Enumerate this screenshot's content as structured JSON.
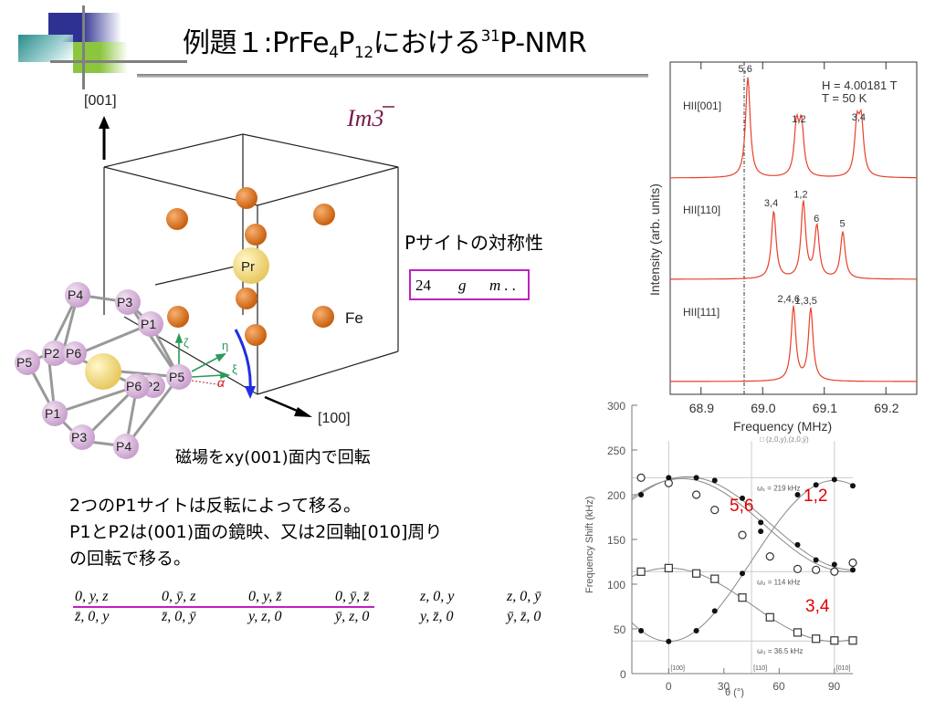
{
  "slide": {
    "title_prefix": "例題１:PrFe",
    "title_sub1": "4",
    "title_p": "P",
    "title_sub2": "12",
    "title_mid": "における",
    "title_sup": "31",
    "title_suffix": "P-NMR"
  },
  "crystal": {
    "axis_001": "[001]",
    "axis_100": "[100]",
    "space_group": "Im3̄",
    "atom_pr": "Pr",
    "atom_fe": "Fe",
    "p_labels": [
      "P4",
      "P3",
      "P1",
      "P2",
      "P6",
      "P5",
      "P5",
      "P6",
      "P2",
      "P1",
      "P3",
      "P4"
    ],
    "local_axes": [
      "ζ",
      "η",
      "ξ",
      "α"
    ],
    "rotation_caption": "磁場をxy(001)面内で回転"
  },
  "symmetry": {
    "heading": "Pサイトの対称性",
    "multiplicity": "24",
    "wyckoff": "g",
    "site_symmetry": "m . ."
  },
  "explanation": {
    "line1": "2つのP1サイトは反転によって移る。",
    "line2": "P1とP2は(001)面の鏡映、又は2回軸[010]周り",
    "line3": "の回転で移る。"
  },
  "coordinates": {
    "row1": [
      "0, y, z",
      "0, ȳ, z",
      "0, y, z̄",
      "0, ȳ, z̄",
      "z, 0, y",
      "z, 0, ȳ"
    ],
    "row2": [
      "z̄, 0, y",
      "z̄, 0, ȳ",
      "y, z, 0",
      "ȳ, z, 0",
      "y, z̄, 0",
      "ȳ, z̄, 0"
    ]
  },
  "chart_data": [
    {
      "type": "line",
      "title": "",
      "xlabel": "Frequency (MHz)",
      "ylabel": "Intensity (arb. units)",
      "xlim": [
        68.85,
        69.25
      ],
      "xticks": [
        "68.9",
        "69.0",
        "69.1",
        "69.2"
      ],
      "annotations": [
        "H = 4.00181 T",
        "T = 50 K"
      ],
      "reference_line_x": 68.97,
      "series": [
        {
          "name": "HII[001]",
          "peaks": [
            {
              "x": 68.976,
              "label": "5,6",
              "height": 1.0
            },
            {
              "x": 69.055,
              "label": "",
              "height": 0.5
            },
            {
              "x": 69.063,
              "label": "1,2",
              "height": 0.5
            },
            {
              "x": 69.153,
              "label": "",
              "height": 0.5
            },
            {
              "x": 69.16,
              "label": "3,4",
              "height": 0.52
            }
          ]
        },
        {
          "name": "HII[110]",
          "peaks": [
            {
              "x": 69.018,
              "label": "3,4",
              "height": 0.78
            },
            {
              "x": 69.066,
              "label": "1,2",
              "height": 0.88
            },
            {
              "x": 69.088,
              "label": "6",
              "height": 0.6
            },
            {
              "x": 69.13,
              "label": "5",
              "height": 0.54
            }
          ]
        },
        {
          "name": "HII[111]",
          "peaks": [
            {
              "x": 69.05,
              "label": "2,4,6",
              "height": 0.9
            },
            {
              "x": 69.078,
              "label": "1,3,5",
              "height": 0.88
            }
          ]
        }
      ]
    },
    {
      "type": "scatter",
      "title": "",
      "xlabel": "θ (°)",
      "ylabel": "Frequency Shift (kHz)",
      "xlim": [
        -20,
        100
      ],
      "ylim": [
        0,
        300
      ],
      "xticks": [
        "0",
        "30",
        "60",
        "90"
      ],
      "yticks": [
        "0",
        "50",
        "100",
        "150",
        "200",
        "250",
        "300"
      ],
      "direction_labels": [
        "[100]",
        "[110]",
        "[010]"
      ],
      "reference_lines": [
        {
          "label": "ω₁ = 219 kHz",
          "y": 219
        },
        {
          "label": "ω₂ = 114 kHz",
          "y": 114
        },
        {
          "label": "ω₃ = 36.5 kHz",
          "y": 36.5
        }
      ],
      "legend_partial": "□ (z,0,y),(z,0,ȳ)",
      "group_labels": [
        {
          "text": "5,6",
          "color": "#e00000"
        },
        {
          "text": "1,2",
          "color": "#e00000"
        },
        {
          "text": "3,4",
          "color": "#e00000"
        }
      ],
      "series": [
        {
          "name": "open-circle",
          "x": [
            -15,
            0,
            15,
            25,
            40,
            55,
            70,
            80,
            90,
            100
          ],
          "y": [
            219,
            213,
            200,
            183,
            155,
            131,
            117,
            116,
            114,
            124
          ]
        },
        {
          "name": "filled-circle-a",
          "x": [
            -15,
            0,
            15,
            25,
            40,
            50,
            70,
            80,
            90,
            100
          ],
          "y": [
            200,
            219,
            219,
            216,
            196,
            169,
            144,
            127,
            122,
            116
          ]
        },
        {
          "name": "filled-circle-b",
          "x": [
            -15,
            0,
            15,
            25,
            40,
            50,
            70,
            80,
            90,
            100
          ],
          "y": [
            48,
            36,
            48,
            70,
            112,
            159,
            200,
            211,
            217,
            210
          ]
        },
        {
          "name": "open-square",
          "x": [
            -15,
            0,
            15,
            25,
            40,
            55,
            70,
            80,
            90,
            100
          ],
          "y": [
            114,
            118,
            112,
            106,
            85,
            63,
            46,
            39,
            37,
            37
          ]
        }
      ]
    }
  ]
}
